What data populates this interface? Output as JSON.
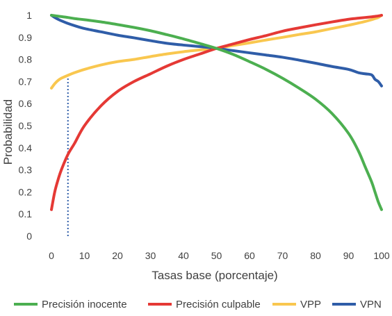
{
  "chart_data": {
    "type": "line",
    "title": "",
    "xlabel": "Tasas base (porcentaje)",
    "ylabel": "Probabilidad",
    "xlim": [
      0,
      100
    ],
    "ylim": [
      0,
      1
    ],
    "x_ticks": [
      "0",
      "10",
      "20",
      "30",
      "40",
      "50",
      "60",
      "70",
      "80",
      "90",
      "100"
    ],
    "y_ticks": [
      "0",
      "0.1",
      "0.2",
      "0.3",
      "0.4",
      "0.5",
      "0.6",
      "0.7",
      "0.8",
      "0.9",
      "1"
    ],
    "grid": false,
    "legend_position": "bottom",
    "x": [
      0,
      1,
      2,
      3,
      5,
      7,
      10,
      15,
      20,
      25,
      30,
      35,
      40,
      45,
      50,
      55,
      60,
      65,
      70,
      75,
      80,
      85,
      90,
      93,
      95,
      97,
      98,
      99,
      100
    ],
    "series": [
      {
        "name": "Precisión inocente",
        "color": "#4CAF50",
        "values": [
          1.0,
          0.998,
          0.996,
          0.994,
          0.99,
          0.985,
          0.98,
          0.97,
          0.958,
          0.945,
          0.93,
          0.912,
          0.893,
          0.872,
          0.85,
          0.823,
          0.79,
          0.755,
          0.715,
          0.67,
          0.62,
          0.555,
          0.465,
          0.385,
          0.315,
          0.245,
          0.2,
          0.155,
          0.12
        ]
      },
      {
        "name": "Precisión culpable",
        "color": "#E53935",
        "values": [
          0.12,
          0.2,
          0.255,
          0.3,
          0.37,
          0.42,
          0.5,
          0.59,
          0.655,
          0.7,
          0.735,
          0.77,
          0.8,
          0.825,
          0.85,
          0.87,
          0.89,
          0.908,
          0.928,
          0.943,
          0.957,
          0.97,
          0.982,
          0.987,
          0.99,
          0.993,
          0.995,
          0.997,
          1.0
        ]
      },
      {
        "name": "VPP",
        "color": "#F9C74F",
        "values": [
          0.67,
          0.69,
          0.705,
          0.715,
          0.728,
          0.74,
          0.755,
          0.775,
          0.79,
          0.8,
          0.813,
          0.825,
          0.835,
          0.843,
          0.85,
          0.863,
          0.875,
          0.888,
          0.9,
          0.913,
          0.925,
          0.94,
          0.955,
          0.965,
          0.972,
          0.98,
          0.985,
          0.99,
          1.0
        ]
      },
      {
        "name": "VPN",
        "color": "#2F5DA8",
        "values": [
          1.0,
          0.99,
          0.982,
          0.975,
          0.963,
          0.953,
          0.94,
          0.925,
          0.91,
          0.898,
          0.885,
          0.873,
          0.865,
          0.858,
          0.85,
          0.84,
          0.83,
          0.82,
          0.81,
          0.797,
          0.783,
          0.768,
          0.755,
          0.74,
          0.735,
          0.73,
          0.71,
          0.7,
          0.68
        ]
      }
    ],
    "reference_line": {
      "x": 5,
      "y_from": 0,
      "y_to": 0.73,
      "color": "#2F5DA8",
      "style": "dotted"
    }
  }
}
